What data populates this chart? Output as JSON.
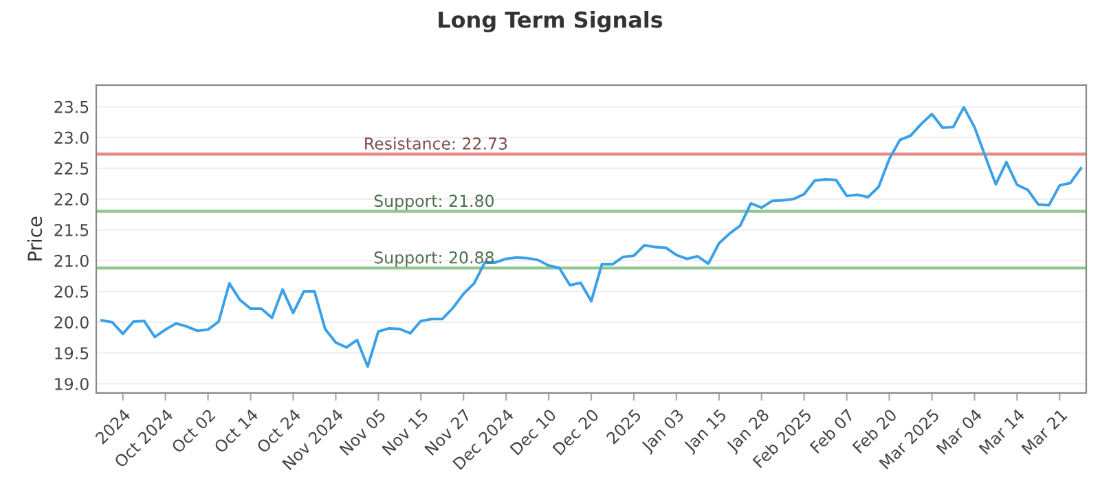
{
  "chart_data": {
    "type": "line",
    "title": "Long Term Signals",
    "ylabel": "Price",
    "categories": [
      null,
      null,
      "2024",
      null,
      null,
      null,
      "Oct 2024",
      null,
      null,
      null,
      "Oct 02",
      null,
      null,
      null,
      "Oct 14",
      null,
      null,
      null,
      "Oct 24",
      null,
      null,
      null,
      "Nov 2024",
      null,
      null,
      null,
      "Nov 05",
      null,
      null,
      null,
      "Nov 15",
      null,
      null,
      null,
      "Nov 27",
      null,
      null,
      null,
      "Dec 2024",
      null,
      null,
      null,
      "Dec 10",
      null,
      null,
      null,
      "Dec 20",
      null,
      null,
      null,
      "2025",
      null,
      null,
      null,
      "Jan 03",
      null,
      null,
      null,
      "Jan 15",
      null,
      null,
      null,
      "Jan 28",
      null,
      null,
      null,
      "Feb 2025",
      null,
      null,
      null,
      "Feb 07",
      null,
      null,
      null,
      "Feb 20",
      null,
      null,
      null,
      "Mar 2025",
      null,
      null,
      null,
      "Mar 04",
      null,
      null,
      null,
      "Mar 14",
      null,
      null,
      null,
      "Mar 21",
      null,
      null
    ],
    "series": [
      {
        "color": "#3aa0e8",
        "values": [
          20.03,
          20.0,
          19.81,
          20.01,
          20.02,
          19.76,
          19.88,
          19.98,
          19.93,
          19.86,
          19.88,
          20.01,
          20.63,
          20.36,
          20.22,
          20.22,
          20.07,
          20.53,
          20.15,
          20.5,
          20.5,
          19.89,
          19.67,
          19.59,
          19.71,
          19.28,
          19.85,
          19.9,
          19.89,
          19.82,
          20.02,
          20.05,
          20.05,
          20.23,
          20.46,
          20.63,
          20.97,
          20.97,
          21.03,
          21.05,
          21.04,
          21.01,
          20.92,
          20.88,
          20.6,
          20.64,
          20.34,
          20.94,
          20.94,
          21.06,
          21.08,
          21.25,
          21.22,
          21.21,
          21.09,
          21.03,
          21.07,
          20.95,
          21.28,
          21.44,
          21.57,
          21.93,
          21.86,
          21.97,
          21.98,
          22.0,
          22.08,
          22.3,
          22.32,
          22.31,
          22.05,
          22.07,
          22.03,
          22.2,
          22.65,
          22.96,
          23.03,
          23.22,
          23.38,
          23.16,
          23.17,
          23.49,
          23.17,
          22.7,
          22.24,
          22.6,
          22.23,
          22.15,
          21.91,
          21.9,
          22.22,
          22.26,
          22.5
        ]
      }
    ],
    "ylim": [
      18.85,
      23.85
    ],
    "yticks": [
      {
        "value": 19.0,
        "label": "19.0"
      },
      {
        "value": 19.5,
        "label": "19.5"
      },
      {
        "value": 20.0,
        "label": "20.0"
      },
      {
        "value": 20.5,
        "label": "20.5"
      },
      {
        "value": 21.0,
        "label": "21.0"
      },
      {
        "value": 21.5,
        "label": "21.5"
      },
      {
        "value": 22.0,
        "label": "22.0"
      },
      {
        "value": 22.5,
        "label": "22.5"
      },
      {
        "value": 23.0,
        "label": "23.0"
      },
      {
        "value": 23.5,
        "label": "23.5"
      }
    ],
    "ref_lines": [
      {
        "axis": "y",
        "value": 22.73,
        "label": "Resistance: 22.73",
        "color": "#e88a8a"
      },
      {
        "axis": "y",
        "value": 21.8,
        "label": "Support: 21.80",
        "color": "#8fc98f"
      },
      {
        "axis": "y",
        "value": 20.88,
        "label": "Support: 20.88",
        "color": "#8fc98f"
      }
    ],
    "grid": "y",
    "marker": "none",
    "line_style": "solid"
  }
}
